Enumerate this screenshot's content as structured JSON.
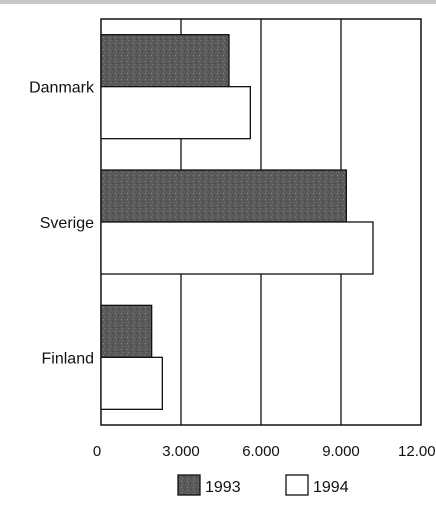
{
  "chart_data": {
    "type": "bar",
    "orientation": "horizontal",
    "categories": [
      "Danmark",
      "Sverige",
      "Finland"
    ],
    "series": [
      {
        "name": "1993",
        "values": [
          4800,
          9200,
          1900
        ],
        "color": "#5a5a5a"
      },
      {
        "name": "1994",
        "values": [
          5600,
          10200,
          2300
        ],
        "color": "#ffffff"
      }
    ],
    "x_ticks": [
      "0",
      "3.000",
      "6.000",
      "9.000",
      "12.000"
    ],
    "xlim": [
      0,
      12000
    ],
    "grid": "vertical",
    "legend": "bottom-center",
    "title": "",
    "xlabel": "",
    "ylabel": ""
  }
}
